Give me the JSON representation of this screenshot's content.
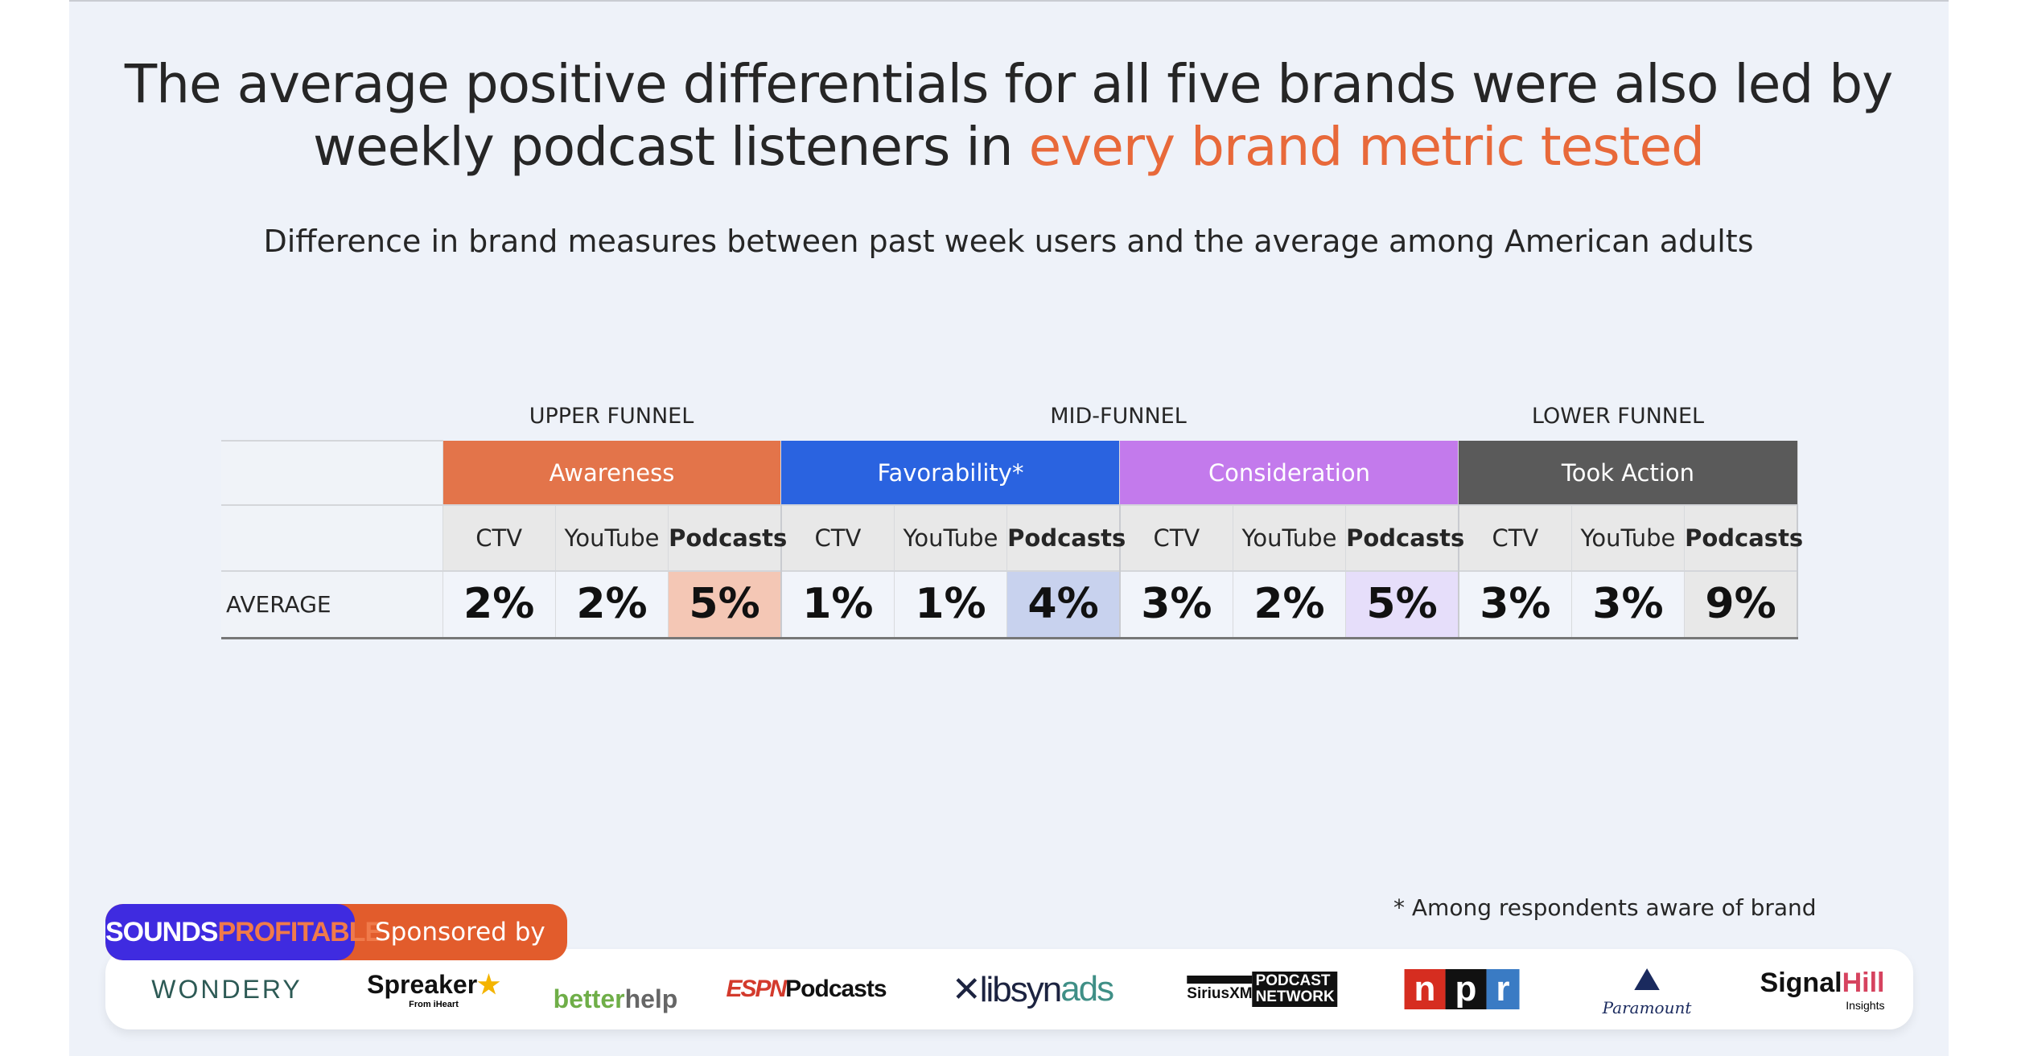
{
  "title": {
    "line1": "The average positive differentials for all five brands were also led by",
    "line2_plain": "weekly podcast listeners in ",
    "line2_accent": "every brand metric tested"
  },
  "subtitle": "Difference in brand measures between past week users and the average among American adults",
  "funnels": [
    "UPPER FUNNEL",
    "MID-FUNNEL",
    "LOWER FUNNEL"
  ],
  "metrics": [
    {
      "label": "Awareness",
      "color": "#e3744a",
      "highlight": "#f4c7b5"
    },
    {
      "label": "Favorability*",
      "color": "#2a63e0",
      "highlight": "#c8d2ee"
    },
    {
      "label": "Consideration",
      "color": "#c37aec",
      "highlight": "#e6defa"
    },
    {
      "label": "Took Action",
      "color": "#5a5a5a",
      "highlight": "#e8e8e8"
    }
  ],
  "channels": [
    "CTV",
    "YouTube",
    "Podcasts"
  ],
  "row_label": "AVERAGE",
  "values": [
    [
      "2%",
      "2%",
      "5%"
    ],
    [
      "1%",
      "1%",
      "4%"
    ],
    [
      "3%",
      "2%",
      "5%"
    ],
    [
      "3%",
      "3%",
      "9%"
    ]
  ],
  "footnote": "* Among respondents aware of brand",
  "sponsor": {
    "brand": "SOUNDSPROFITABLE",
    "label": "Sponsored by"
  },
  "logos": [
    "WONDERY",
    "Spreaker",
    "betterhelp",
    "ESPN Podcasts",
    "libsyn ads",
    "SiriusXM PODCAST NETWORK",
    "npr",
    "Paramount",
    "SignalHill Insights"
  ],
  "logo_sub": {
    "spreaker": "From iHeart",
    "signalhill": "Insights"
  }
}
